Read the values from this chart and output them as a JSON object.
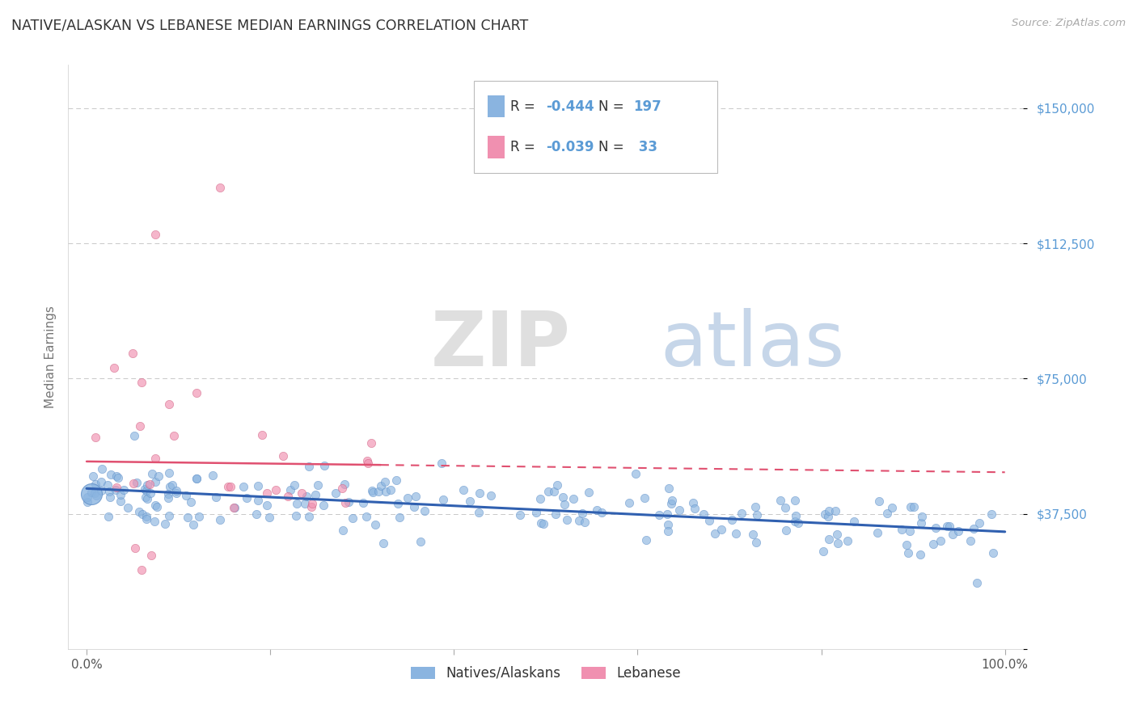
{
  "title": "NATIVE/ALASKAN VS LEBANESE MEDIAN EARNINGS CORRELATION CHART",
  "source_text": "Source: ZipAtlas.com",
  "ylabel": "Median Earnings",
  "xlim": [
    -0.02,
    1.02
  ],
  "ylim": [
    0,
    162000
  ],
  "title_color": "#333333",
  "axis_label_color": "#5b9bd5",
  "watermark_zip": "ZIP",
  "watermark_atlas": "atlas",
  "blue_color": "#8ab4e0",
  "pink_color": "#f090b0",
  "line_blue": "#3060b0",
  "line_pink": "#e05070",
  "grid_color": "#c8c8c8",
  "natives_n": 197,
  "lebanese_n": 33
}
